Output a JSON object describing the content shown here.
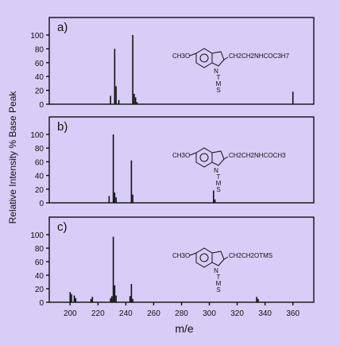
{
  "chart_data": [
    {
      "type": "bar",
      "panel_label": "a)",
      "structure": {
        "substituent": "CH3O",
        "side_chain": "CH2CH2NHCOC3H7",
        "n_group_top": "N",
        "n_group_bottom": "T\nM\nS"
      },
      "x": [
        229,
        232,
        233,
        235,
        245,
        246,
        247,
        248,
        360
      ],
      "y": [
        12,
        80,
        26,
        6,
        100,
        15,
        10,
        3,
        18
      ],
      "ylim": [
        0,
        100
      ]
    },
    {
      "type": "bar",
      "panel_label": "b)",
      "structure": {
        "substituent": "CH3O",
        "side_chain": "CH2CH2NHCOCH3",
        "n_group_top": "N",
        "n_group_bottom": "T\nM\nS"
      },
      "x": [
        228,
        231,
        232,
        233,
        244,
        245,
        303,
        304
      ],
      "y": [
        10,
        100,
        15,
        8,
        62,
        12,
        18,
        5
      ],
      "ylim": [
        0,
        100
      ]
    },
    {
      "type": "bar",
      "panel_label": "c)",
      "structure": {
        "substituent": "CH3O",
        "side_chain": "CH2CH2OTMS",
        "n_group_top": "N",
        "n_group_bottom": "T\nM\nS"
      },
      "x": [
        200,
        201,
        203,
        204,
        215,
        216,
        229,
        230,
        231,
        232,
        233,
        243,
        244,
        245,
        334,
        335
      ],
      "y": [
        15,
        12,
        10,
        6,
        5,
        8,
        6,
        9,
        97,
        25,
        10,
        9,
        27,
        5,
        8,
        5
      ],
      "ylim": [
        0,
        100
      ]
    }
  ],
  "axes": {
    "ylabel": "Relative Intensity % Base Peak",
    "xlabel": "m/e",
    "xlim": [
      185,
      375
    ],
    "x_ticks": [
      "200",
      "220",
      "240",
      "260",
      "280",
      "300",
      "320",
      "340",
      "360"
    ],
    "y_ticks": [
      "0",
      "20",
      "40",
      "60",
      "80",
      "100"
    ]
  }
}
